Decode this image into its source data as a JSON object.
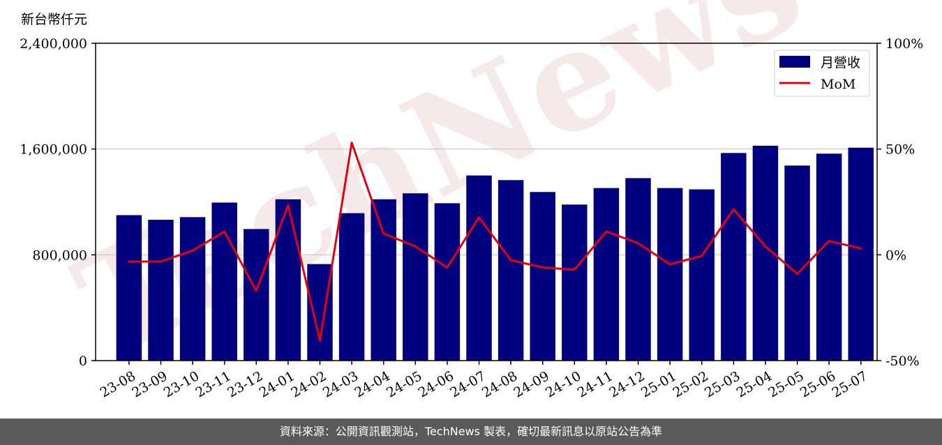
{
  "chart_data": {
    "type": "bar",
    "unit_label": "新台幣仟元",
    "categories": [
      "23-08",
      "23-09",
      "23-10",
      "23-11",
      "23-12",
      "24-01",
      "24-02",
      "24-03",
      "24-04",
      "24-05",
      "24-06",
      "24-07",
      "24-08",
      "24-09",
      "24-10",
      "24-11",
      "24-12",
      "25-01",
      "25-02",
      "25-03",
      "25-04",
      "25-05",
      "25-06",
      "25-07"
    ],
    "series": [
      {
        "name": "月營收",
        "type": "bar",
        "axis": "left",
        "color": "#00007f",
        "values": [
          1100000,
          1065000,
          1085000,
          1195000,
          995000,
          1220000,
          730000,
          1115000,
          1220000,
          1265000,
          1190000,
          1400000,
          1365000,
          1275000,
          1180000,
          1305000,
          1380000,
          1305000,
          1295000,
          1570000,
          1625000,
          1475000,
          1565000,
          1610000
        ]
      },
      {
        "name": "MoM",
        "type": "line",
        "axis": "right",
        "color": "#e3000f",
        "values": [
          -3.2,
          -3.2,
          2.0,
          11.0,
          -17.0,
          23.5,
          -40.5,
          53.0,
          10.0,
          4.0,
          -6.0,
          17.7,
          -2.5,
          -6.0,
          -7.0,
          11.0,
          5.5,
          -4.5,
          -0.5,
          21.5,
          4.0,
          -9.0,
          6.5,
          3.0
        ]
      }
    ],
    "left_axis": {
      "ylim": [
        0,
        2400000
      ],
      "ticks": [
        0,
        800000,
        1600000,
        2400000
      ],
      "tick_labels": [
        "0",
        "800,000",
        "1,600,000",
        "2,400,000"
      ]
    },
    "right_axis": {
      "ylim": [
        -50,
        100
      ],
      "ticks": [
        -50,
        0,
        50,
        100
      ],
      "tick_labels": [
        "-50%",
        "0%",
        "50%",
        "100%"
      ]
    },
    "grid": "horizontal",
    "legend_position": "top-right",
    "watermark": "TechNews"
  },
  "footer": {
    "text": "資料來源：公開資訊觀測站，TechNews 製表，確切最新訊息以原站公告為準"
  }
}
